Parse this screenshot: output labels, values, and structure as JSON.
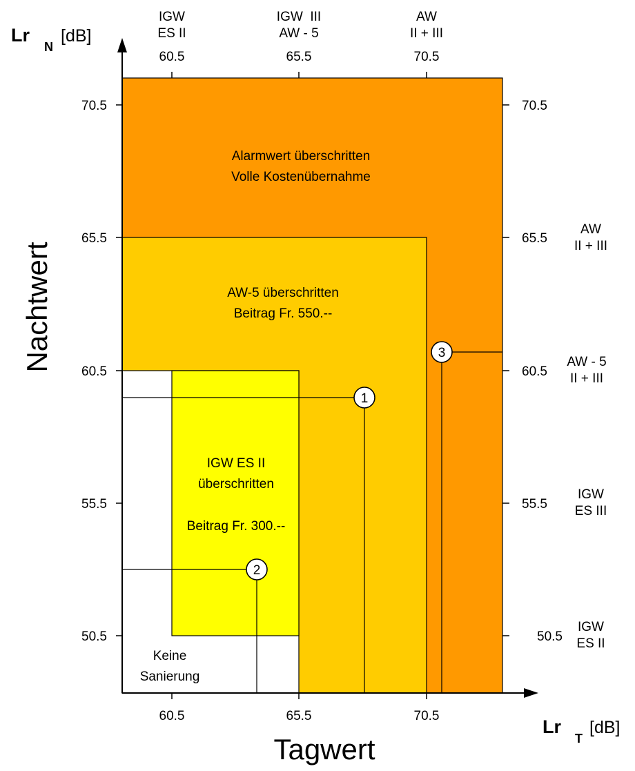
{
  "axes": {
    "y_axis_symbol": "Lr",
    "y_axis_subscript": "N",
    "y_axis_unit": "[dB]",
    "y_axis_title": "Nachtwert",
    "x_axis_symbol": "Lr",
    "x_axis_subscript": "T",
    "x_axis_unit": "[dB]",
    "x_axis_title": "Tagwert",
    "x_ticks": [
      "60.5",
      "65.5",
      "70.5"
    ],
    "y_ticks_left": [
      "70.5",
      "65.5",
      "60.5",
      "55.5",
      "50.5"
    ],
    "y_ticks_right": [
      "70.5",
      "65.5",
      "60.5",
      "55.5",
      "50.5"
    ],
    "top_ticks": [
      "60.5",
      "65.5",
      "70.5"
    ]
  },
  "top_headers": [
    {
      "line1": "IGW",
      "line2": "ES II"
    },
    {
      "line1": "IGW  III",
      "line2": "AW - 5"
    },
    {
      "line1": "AW",
      "line2": "II + III"
    }
  ],
  "right_labels": [
    {
      "line1": "AW",
      "line2": "II + III"
    },
    {
      "line1": "AW - 5",
      "line2": "II + III"
    },
    {
      "line1": "IGW",
      "line2": "ES III"
    },
    {
      "line1": "IGW",
      "line2": "ES II"
    }
  ],
  "zones": {
    "alarm": {
      "line1": "Alarmwert überschritten",
      "line2": "Volle Kostenübernahme",
      "color": "#FF9900"
    },
    "aw5": {
      "line1": "AW-5 überschritten",
      "line2": "Beitrag Fr. 550.--",
      "color": "#FFCC00"
    },
    "igw": {
      "line1": "IGW ES II",
      "line2": "überschritten",
      "line3": "Beitrag Fr. 300.--",
      "color": "#FFFF00"
    },
    "none": {
      "line1": "Keine",
      "line2": "Sanierung",
      "color": "#FFFFFF"
    }
  },
  "markers": [
    {
      "label": "1",
      "day_db": 68.0,
      "night_db": 59.5
    },
    {
      "label": "2",
      "day_db": 63.7,
      "night_db": 53.2
    },
    {
      "label": "3",
      "day_db": 71.1,
      "night_db": 61.2
    }
  ]
}
